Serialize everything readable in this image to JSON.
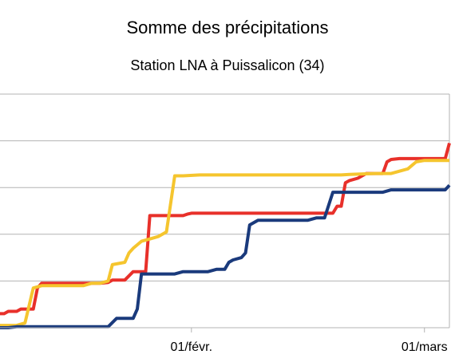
{
  "chart_data": {
    "type": "line",
    "title": "Somme des précipitations",
    "subtitle": "Station LNA à Puissalicon (34)",
    "xlabel": "",
    "ylabel": "",
    "x_ticks": [
      {
        "label": "01/févr.",
        "day": 32
      },
      {
        "label": "01/mars",
        "day": 60
      }
    ],
    "xlim": [
      9,
      63
    ],
    "ylim": [
      0,
      5
    ],
    "y_gridlines": [
      1,
      2,
      3,
      4
    ],
    "grid": true,
    "legend": "none",
    "series": [
      {
        "color": "#e8302a",
        "points": [
          [
            9,
            0.3
          ],
          [
            9.5,
            0.3
          ],
          [
            10,
            0.35
          ],
          [
            11,
            0.35
          ],
          [
            11.5,
            0.4
          ],
          [
            13,
            0.4
          ],
          [
            13.5,
            0.85
          ],
          [
            14,
            0.95
          ],
          [
            21,
            0.95
          ],
          [
            22,
            0.97
          ],
          [
            22.5,
            1.02
          ],
          [
            24,
            1.02
          ],
          [
            25,
            1.2
          ],
          [
            26,
            1.2
          ],
          [
            26.5,
            1.2
          ],
          [
            27,
            2.4
          ],
          [
            28,
            2.4
          ],
          [
            31,
            2.4
          ],
          [
            31.5,
            2.43
          ],
          [
            32,
            2.45
          ],
          [
            49,
            2.45
          ],
          [
            49.5,
            2.6
          ],
          [
            50,
            2.6
          ],
          [
            50.5,
            3.1
          ],
          [
            51,
            3.15
          ],
          [
            52,
            3.2
          ],
          [
            53,
            3.3
          ],
          [
            55,
            3.3
          ],
          [
            55.5,
            3.55
          ],
          [
            56,
            3.6
          ],
          [
            57,
            3.62
          ],
          [
            62.5,
            3.62
          ],
          [
            63,
            3.95
          ]
        ]
      },
      {
        "color": "#f5c52e",
        "points": [
          [
            9,
            0.05
          ],
          [
            11,
            0.05
          ],
          [
            12,
            0.1
          ],
          [
            13,
            0.85
          ],
          [
            14,
            0.9
          ],
          [
            19,
            0.9
          ],
          [
            20,
            0.95
          ],
          [
            21,
            0.95
          ],
          [
            22,
            1.0
          ],
          [
            22.5,
            1.35
          ],
          [
            24,
            1.4
          ],
          [
            24.5,
            1.6
          ],
          [
            25,
            1.7
          ],
          [
            26,
            1.85
          ],
          [
            27,
            1.9
          ],
          [
            28,
            1.95
          ],
          [
            29,
            2.05
          ],
          [
            30,
            3.25
          ],
          [
            31,
            3.25
          ],
          [
            33,
            3.27
          ],
          [
            50,
            3.27
          ],
          [
            51,
            3.28
          ],
          [
            54,
            3.3
          ],
          [
            56,
            3.3
          ],
          [
            57,
            3.35
          ],
          [
            58,
            3.4
          ],
          [
            59,
            3.55
          ],
          [
            60,
            3.58
          ],
          [
            63,
            3.58
          ]
        ]
      },
      {
        "color": "#1a3a7c",
        "points": [
          [
            9,
            0
          ],
          [
            10,
            0
          ],
          [
            11,
            0.02
          ],
          [
            22,
            0.02
          ],
          [
            23,
            0.2
          ],
          [
            25,
            0.2
          ],
          [
            25.5,
            0.4
          ],
          [
            26,
            1.15
          ],
          [
            27,
            1.15
          ],
          [
            30,
            1.15
          ],
          [
            31,
            1.2
          ],
          [
            34,
            1.2
          ],
          [
            35,
            1.25
          ],
          [
            36,
            1.25
          ],
          [
            36.5,
            1.4
          ],
          [
            37,
            1.45
          ],
          [
            38,
            1.5
          ],
          [
            38.5,
            1.6
          ],
          [
            39,
            2.2
          ],
          [
            40,
            2.3
          ],
          [
            46,
            2.3
          ],
          [
            47,
            2.35
          ],
          [
            48,
            2.35
          ],
          [
            49,
            2.9
          ],
          [
            50,
            2.9
          ],
          [
            55,
            2.9
          ],
          [
            56,
            2.95
          ],
          [
            62.5,
            2.95
          ],
          [
            63,
            3.05
          ]
        ]
      }
    ]
  }
}
